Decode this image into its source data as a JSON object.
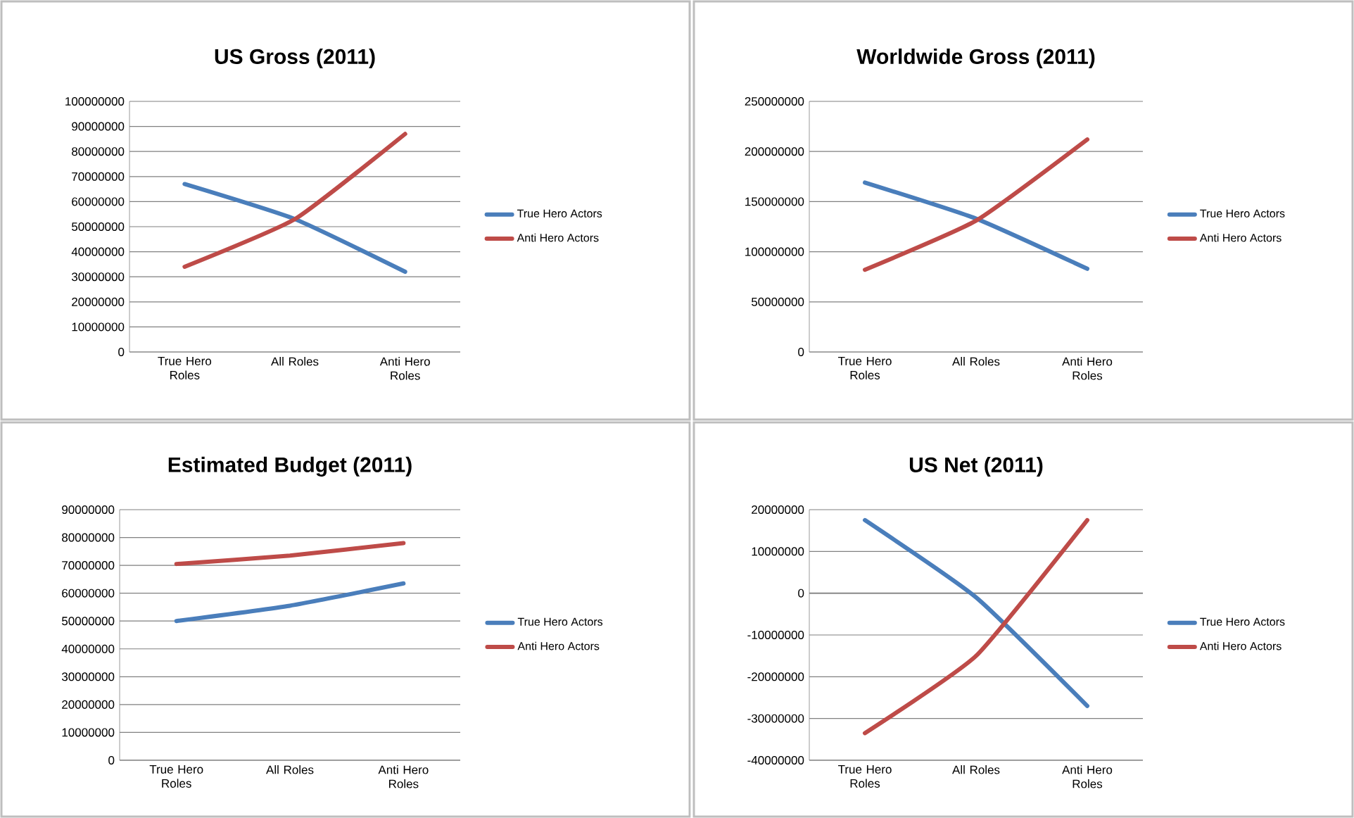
{
  "chart_data": [
    {
      "type": "line",
      "title": "US Gross (2011)",
      "categories": [
        "True Hero Roles",
        "All Roles",
        "Anti Hero Roles"
      ],
      "ylim": [
        0,
        100000000
      ],
      "yticks": [
        0,
        10000000,
        20000000,
        30000000,
        40000000,
        50000000,
        60000000,
        70000000,
        80000000,
        90000000,
        100000000
      ],
      "grid": "y",
      "legend": "right",
      "series": [
        {
          "name": "True Hero Actors",
          "color": "#4a7ebb",
          "values": [
            67000000,
            53000000,
            32000000
          ]
        },
        {
          "name": "Anti Hero Actors",
          "color": "#be4b48",
          "values": [
            34000000,
            53000000,
            87000000
          ]
        }
      ]
    },
    {
      "type": "line",
      "title": "Worldwide Gross (2011)",
      "categories": [
        "True Hero Roles",
        "All Roles",
        "Anti Hero Roles"
      ],
      "ylim": [
        0,
        250000000
      ],
      "yticks": [
        0,
        50000000,
        100000000,
        150000000,
        200000000,
        250000000
      ],
      "grid": "y",
      "legend": "right",
      "series": [
        {
          "name": "True Hero Actors",
          "color": "#4a7ebb",
          "values": [
            169000000,
            133000000,
            83000000
          ]
        },
        {
          "name": "Anti Hero Actors",
          "color": "#be4b48",
          "values": [
            82000000,
            131000000,
            212000000
          ]
        }
      ]
    },
    {
      "type": "line",
      "title": "Estimated Budget (2011)",
      "categories": [
        "True Hero Roles",
        "All Roles",
        "Anti Hero Roles"
      ],
      "ylim": [
        0,
        90000000
      ],
      "yticks": [
        0,
        10000000,
        20000000,
        30000000,
        40000000,
        50000000,
        60000000,
        70000000,
        80000000,
        90000000
      ],
      "grid": "y",
      "legend": "right",
      "series": [
        {
          "name": "True Hero Actors",
          "color": "#4a7ebb",
          "values": [
            50000000,
            55500000,
            63500000
          ]
        },
        {
          "name": "Anti Hero Actors",
          "color": "#be4b48",
          "values": [
            70500000,
            73500000,
            78000000
          ]
        }
      ]
    },
    {
      "type": "line",
      "title": "US Net (2011)",
      "categories": [
        "True Hero Roles",
        "All Roles",
        "Anti Hero Roles"
      ],
      "ylim": [
        -40000000,
        20000000
      ],
      "yticks": [
        -40000000,
        -30000000,
        -20000000,
        -10000000,
        0,
        10000000,
        20000000
      ],
      "grid": "y",
      "legend": "right",
      "series": [
        {
          "name": "True Hero Actors",
          "color": "#4a7ebb",
          "values": [
            17500000,
            -1000000,
            -27000000
          ]
        },
        {
          "name": "Anti Hero Actors",
          "color": "#be4b48",
          "values": [
            -33500000,
            -15000000,
            17500000
          ]
        }
      ]
    }
  ]
}
